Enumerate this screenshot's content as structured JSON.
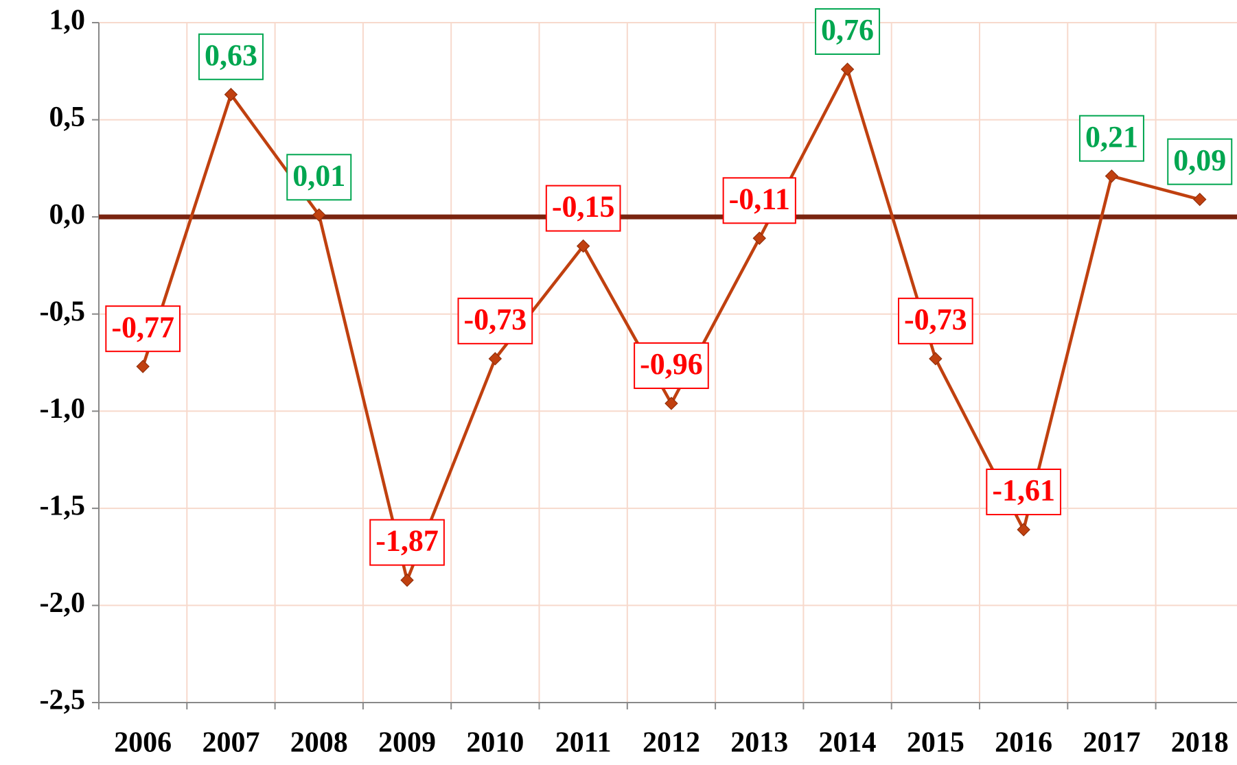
{
  "chart_data": {
    "type": "line",
    "categories": [
      "2006",
      "2007",
      "2008",
      "2009",
      "2010",
      "2011",
      "2012",
      "2013",
      "2014",
      "2015",
      "2016",
      "2017",
      "2018"
    ],
    "series": [
      {
        "color": "#c0400f",
        "values": [
          -0.77,
          0.63,
          0.01,
          -1.87,
          -0.73,
          -0.15,
          -0.96,
          -0.11,
          0.76,
          -0.73,
          -1.61,
          0.21,
          0.09
        ],
        "value_labels": [
          "-0,77",
          "0,63",
          "0,01",
          "-1,87",
          "-0,73",
          "-0,15",
          "-0,96",
          "-0,11",
          "0,76",
          "-0,73",
          "-1,61",
          "0,21",
          "0,09"
        ]
      }
    ],
    "ylim": [
      -2.5,
      1.0
    ],
    "yticks": [
      {
        "value": -2.5,
        "label": "-2,5"
      },
      {
        "value": -2.0,
        "label": "-2,0"
      },
      {
        "value": -1.5,
        "label": "-1,5"
      },
      {
        "value": -1.0,
        "label": "-1,0"
      },
      {
        "value": -0.5,
        "label": "-0,5"
      },
      {
        "value": 0.0,
        "label": "0,0"
      },
      {
        "value": 0.5,
        "label": "0,5"
      },
      {
        "value": 1.0,
        "label": "1,0"
      }
    ],
    "grid": true,
    "grid_color": "#f7d9cc",
    "zero_line_color": "#7a2410",
    "positive_label_color": "#00a650",
    "negative_label_color": "#ff0000"
  }
}
